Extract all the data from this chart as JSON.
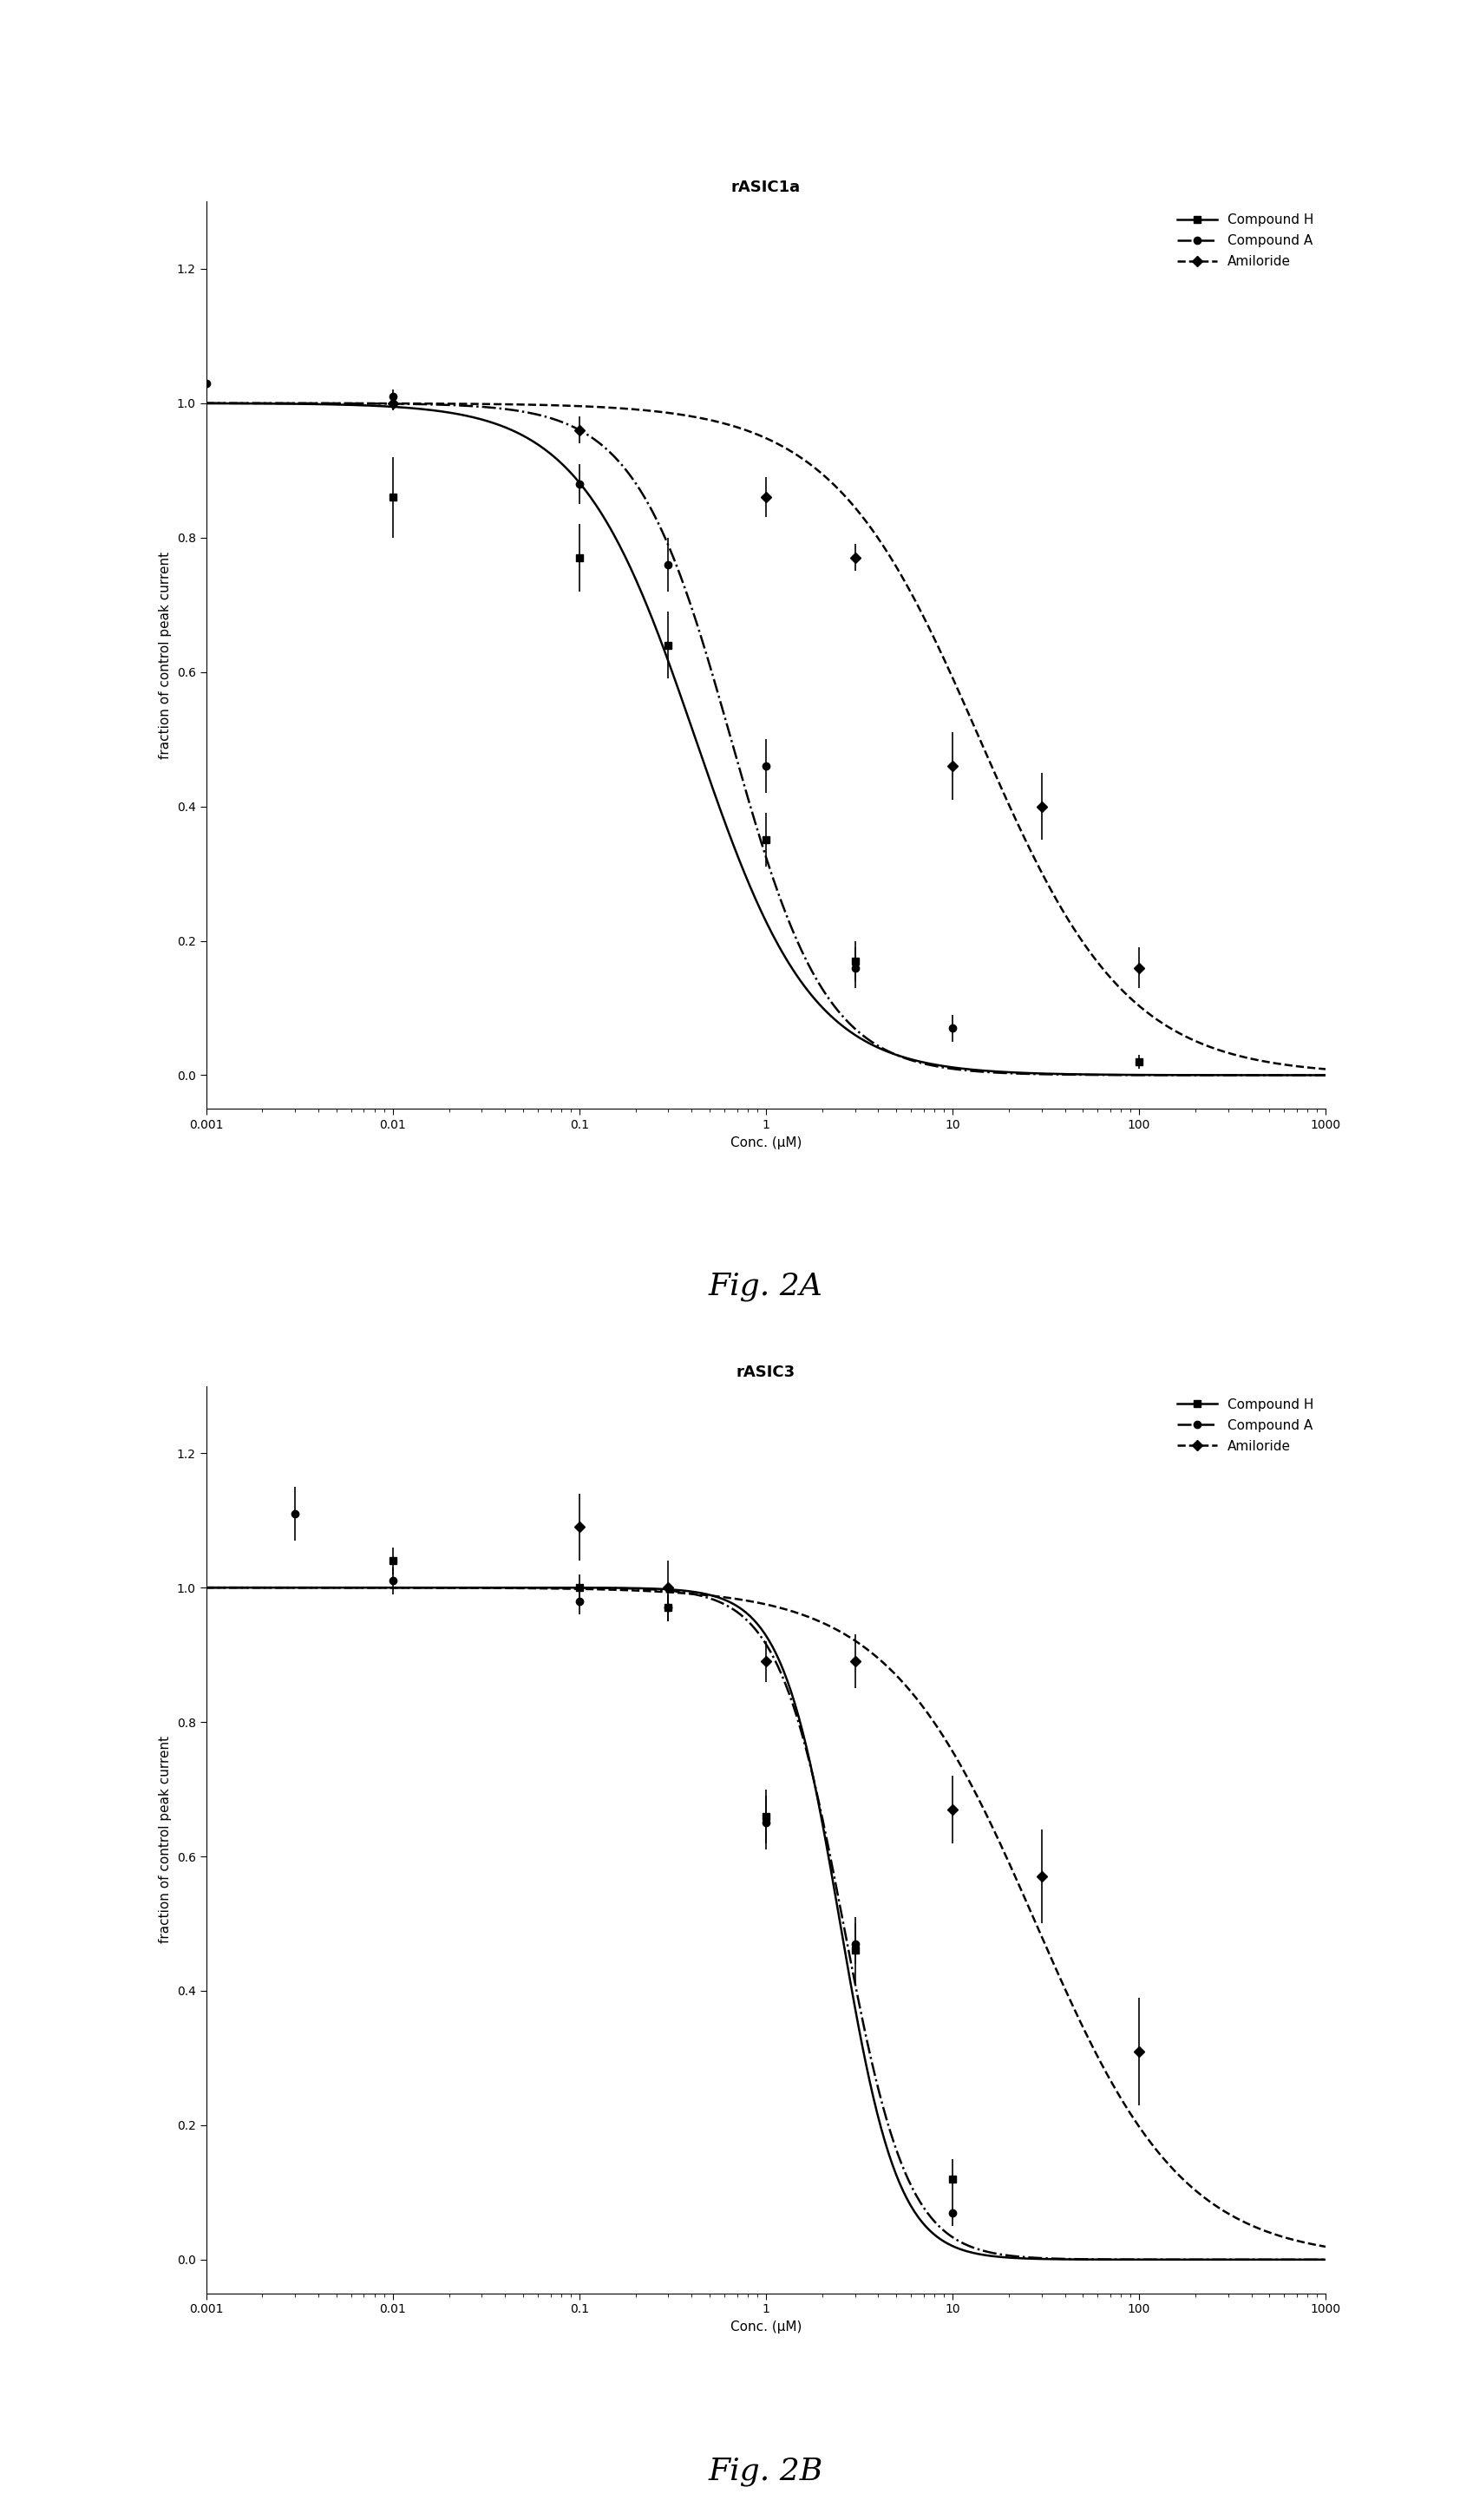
{
  "fig2A": {
    "title": "rASIC1a",
    "xlabel": "Conc. (μM)",
    "ylabel": "fraction of control peak current",
    "xlim": [
      0.001,
      1000
    ],
    "ylim": [
      -0.05,
      1.3
    ],
    "yticks": [
      0.0,
      0.2,
      0.4,
      0.6,
      0.8,
      1.0,
      1.2
    ],
    "xtick_labels": [
      "0.001",
      "0.01",
      "0.1",
      "1",
      "10",
      "100",
      "1000"
    ],
    "xtick_vals": [
      0.001,
      0.01,
      0.1,
      1,
      10,
      100,
      1000
    ],
    "compound_H": {
      "x": [
        0.01,
        0.1,
        0.3,
        1.0,
        3.0,
        100.0
      ],
      "y": [
        0.86,
        0.77,
        0.64,
        0.35,
        0.17,
        0.02
      ],
      "yerr": [
        0.06,
        0.05,
        0.05,
        0.04,
        0.03,
        0.01
      ],
      "marker": "s",
      "linestyle": "-",
      "color": "#000000",
      "label": "Compound H",
      "ic50": 0.42,
      "hill": 1.4
    },
    "compound_A": {
      "x": [
        0.001,
        0.01,
        0.1,
        0.3,
        1.0,
        3.0,
        10.0
      ],
      "y": [
        1.03,
        1.01,
        0.88,
        0.76,
        0.46,
        0.16,
        0.07
      ],
      "yerr": [
        0.02,
        0.01,
        0.03,
        0.04,
        0.04,
        0.03,
        0.02
      ],
      "marker": "o",
      "linestyle": "-.",
      "color": "#000000",
      "label": "Compound A",
      "ic50": 0.65,
      "hill": 1.7
    },
    "amiloride": {
      "x": [
        0.01,
        0.1,
        1.0,
        3.0,
        10.0,
        30.0,
        100.0
      ],
      "y": [
        1.0,
        0.96,
        0.86,
        0.77,
        0.46,
        0.4,
        0.16
      ],
      "yerr": [
        0.01,
        0.02,
        0.03,
        0.02,
        0.05,
        0.05,
        0.03
      ],
      "marker": "D",
      "linestyle": "--",
      "color": "#000000",
      "label": "Amiloride",
      "ic50": 14.0,
      "hill": 1.1
    }
  },
  "fig2B": {
    "title": "rASIC3",
    "xlabel": "Conc. (μM)",
    "ylabel": "fraction of control peak current",
    "xlim": [
      0.001,
      1000
    ],
    "ylim": [
      -0.05,
      1.3
    ],
    "yticks": [
      0.0,
      0.2,
      0.4,
      0.6,
      0.8,
      1.0,
      1.2
    ],
    "xtick_labels": [
      "0.001",
      "0.01",
      "0.1",
      "1",
      "10",
      "100",
      "1000"
    ],
    "xtick_vals": [
      0.001,
      0.01,
      0.1,
      1,
      10,
      100,
      1000
    ],
    "compound_H": {
      "x": [
        0.01,
        0.1,
        0.3,
        1.0,
        3.0,
        10.0
      ],
      "y": [
        1.04,
        1.0,
        0.97,
        0.66,
        0.46,
        0.12
      ],
      "yerr": [
        0.02,
        0.02,
        0.02,
        0.04,
        0.05,
        0.03
      ],
      "marker": "s",
      "linestyle": "-",
      "color": "#000000",
      "label": "Compound H",
      "ic50": 2.5,
      "hill": 2.8
    },
    "compound_A": {
      "x": [
        0.003,
        0.01,
        0.1,
        0.3,
        1.0,
        3.0,
        10.0
      ],
      "y": [
        1.11,
        1.01,
        0.98,
        0.97,
        0.65,
        0.47,
        0.07
      ],
      "yerr": [
        0.04,
        0.02,
        0.02,
        0.02,
        0.04,
        0.03,
        0.02
      ],
      "marker": "o",
      "linestyle": "-.",
      "color": "#000000",
      "label": "Compound A",
      "ic50": 2.6,
      "hill": 2.5
    },
    "amiloride": {
      "x": [
        0.1,
        0.3,
        1.0,
        3.0,
        10.0,
        30.0,
        100.0
      ],
      "y": [
        1.09,
        1.0,
        0.89,
        0.89,
        0.67,
        0.57,
        0.31
      ],
      "yerr": [
        0.05,
        0.04,
        0.03,
        0.04,
        0.05,
        0.07,
        0.08
      ],
      "marker": "D",
      "linestyle": "--",
      "color": "#000000",
      "label": "Amiloride",
      "ic50": 28.0,
      "hill": 1.1
    }
  },
  "fig_label_A": "Fig. 2A",
  "fig_label_B": "Fig. 2B",
  "background_color": "#ffffff",
  "title_fontsize": 13,
  "axis_label_fontsize": 11,
  "tick_fontsize": 10,
  "legend_fontsize": 11,
  "fig_label_fontsize": 26,
  "linewidth": 1.8,
  "markersize": 6,
  "elinewidth": 1.2
}
